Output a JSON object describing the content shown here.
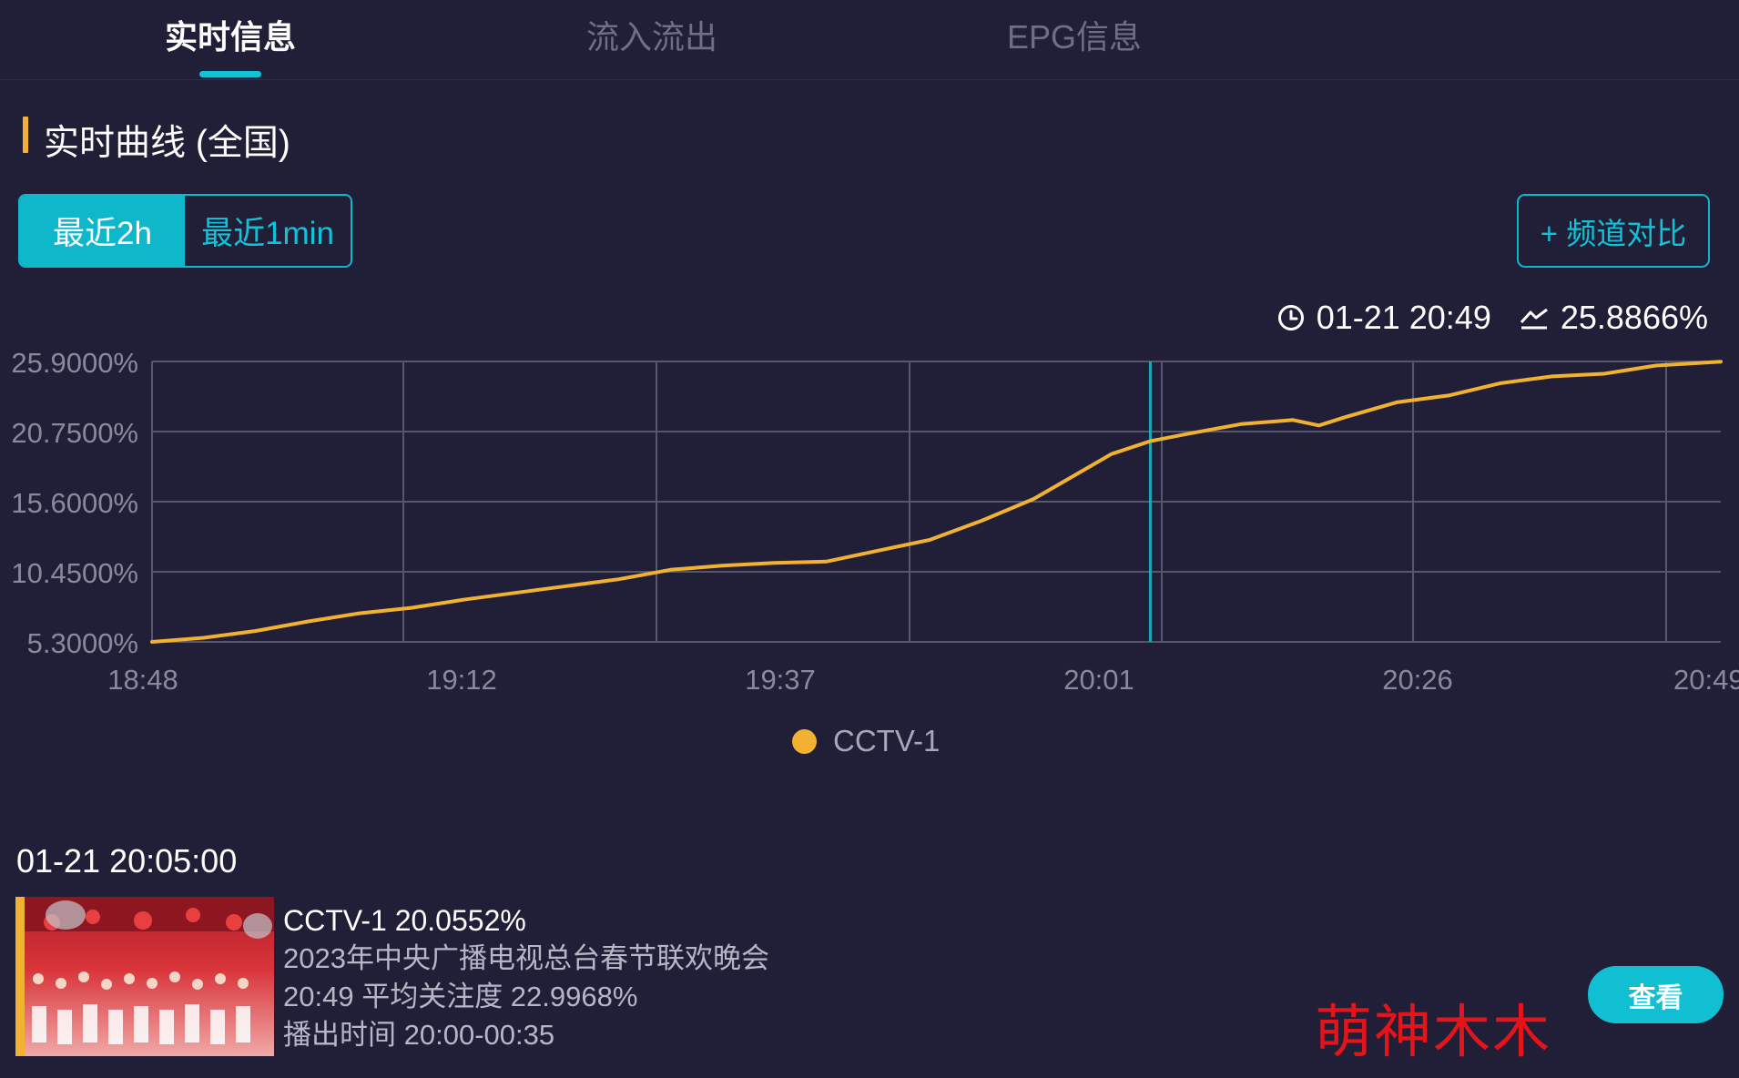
{
  "tabs": [
    {
      "label": "实时信息",
      "active": true
    },
    {
      "label": "流入流出",
      "active": false
    },
    {
      "label": "EPG信息",
      "active": false
    }
  ],
  "section": {
    "title": "实时曲线 (全国)"
  },
  "range": {
    "active_label": "最近2h",
    "inactive_label": "最近1min"
  },
  "compare_button": "+ 频道对比",
  "readout": {
    "time": "01-21 20:49",
    "value": "25.8866%"
  },
  "colors": {
    "background": "#211f38",
    "accent_cyan": "#13c2d6",
    "series_yellow": "#f2b231",
    "cursor_line": "#1aa8b8",
    "watermark_red": "#e4141a"
  },
  "chart_data": {
    "type": "line",
    "title": "",
    "xlabel": "",
    "ylabel": "",
    "x_ticks": [
      "18:48",
      "19:12",
      "19:37",
      "20:01",
      "20:26",
      "20:49"
    ],
    "y_ticks": [
      "25.9000%",
      "20.7500%",
      "15.6000%",
      "10.4500%",
      "5.3000%"
    ],
    "ylim": [
      5.3,
      25.9
    ],
    "grid": true,
    "legend_position": "bottom-center",
    "cursor_time": "20:05",
    "series": [
      {
        "name": "CCTV-1",
        "color": "#f2b231",
        "x": [
          "18:48",
          "18:52",
          "18:56",
          "19:00",
          "19:04",
          "19:08",
          "19:12",
          "19:16",
          "19:20",
          "19:24",
          "19:28",
          "19:32",
          "19:36",
          "19:40",
          "19:44",
          "19:48",
          "19:52",
          "19:56",
          "20:00",
          "20:02",
          "20:05",
          "20:08",
          "20:12",
          "20:16",
          "20:18",
          "20:20",
          "20:24",
          "20:28",
          "20:32",
          "20:36",
          "20:40",
          "20:44",
          "20:49"
        ],
        "values": [
          5.3,
          5.6,
          6.1,
          6.8,
          7.4,
          7.8,
          8.4,
          8.9,
          9.4,
          9.9,
          10.6,
          10.9,
          11.1,
          11.2,
          12.0,
          12.8,
          14.2,
          15.8,
          18.0,
          19.1,
          20.05,
          20.6,
          21.3,
          21.6,
          21.2,
          21.8,
          22.9,
          23.4,
          24.3,
          24.8,
          25.0,
          25.6,
          25.8866
        ]
      }
    ]
  },
  "legend": {
    "label": "CCTV-1"
  },
  "detail": {
    "time": "01-21 20:05:00",
    "headline": "CCTV-1 20.0552%",
    "program": "2023年中央广播电视总台春节联欢晚会",
    "average": "20:49 平均关注度 22.9968%",
    "airtime": "播出时间 20:00-00:35"
  },
  "view_button": "查看",
  "watermark": "萌神木木",
  "icons": {
    "clock": "clock-icon",
    "trend": "trend-icon"
  }
}
